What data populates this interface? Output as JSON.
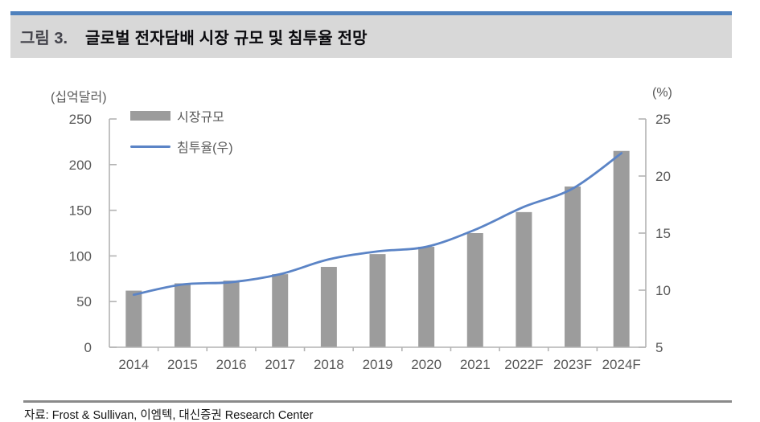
{
  "header": {
    "figure_label": "그림 3.",
    "title": "글로벌 전자담배 시장 규모 및 침투율 전망"
  },
  "footer": {
    "source": "자료:  Frost & Sullivan, 이엠텍, 대신증권 Research Center"
  },
  "colors": {
    "accent_blue": "#4f81bd",
    "header_bg": "#d8d8d8",
    "bar": "#9c9c9c",
    "line": "#5b84c6",
    "axis": "#b3b3b3",
    "axis_text": "#595959"
  },
  "chart_data": {
    "type": "bar",
    "subtype": "bar+line dual-axis",
    "categories": [
      "2014",
      "2015",
      "2016",
      "2017",
      "2018",
      "2019",
      "2020",
      "2021",
      "2022F",
      "2023F",
      "2024F"
    ],
    "series": [
      {
        "name": "시장규모",
        "type": "bar",
        "axis": "left",
        "color": "#9c9c9c",
        "values": [
          62,
          70,
          73,
          80,
          88,
          102,
          110,
          125,
          148,
          176,
          215
        ]
      },
      {
        "name": "침투율(우)",
        "type": "line",
        "axis": "right",
        "color": "#5b84c6",
        "values": [
          9.6,
          10.5,
          10.7,
          11.4,
          12.7,
          13.4,
          13.8,
          15.3,
          17.3,
          18.9,
          22.0
        ]
      }
    ],
    "left_axis": {
      "label": "(십억달러)",
      "min": 0,
      "max": 250,
      "ticks": [
        250,
        200,
        150,
        100,
        50,
        0
      ]
    },
    "right_axis": {
      "label": "(%)",
      "min": 5,
      "max": 25,
      "ticks": [
        25,
        20,
        15,
        10,
        5
      ]
    },
    "legend_position": "top-left",
    "grid": false
  }
}
